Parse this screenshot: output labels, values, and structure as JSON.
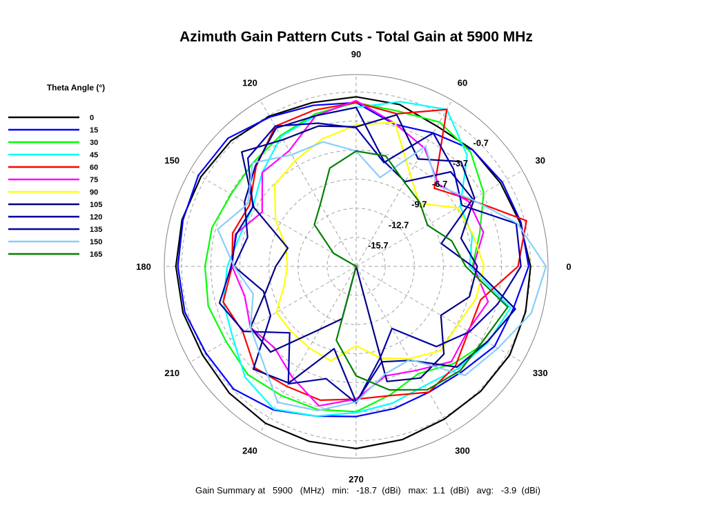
{
  "chart_data": {
    "type": "polar-line",
    "title": "Azimuth Gain Pattern Cuts - Total Gain at 5900 MHz",
    "legend_title": "Theta Angle (°)",
    "legend_position": "left",
    "angle_labels": [
      "0",
      "30",
      "60",
      "90",
      "120",
      "150",
      "180",
      "210",
      "240",
      "270",
      "300",
      "330"
    ],
    "angle_values": [
      0,
      30,
      60,
      90,
      120,
      150,
      180,
      210,
      240,
      270,
      300,
      330
    ],
    "radial_labels": [
      "-0.7",
      "-3.7",
      "-6.7",
      "-9.7",
      "-12.7",
      "-15.7"
    ],
    "rlim": [
      -18.7,
      1.1
    ],
    "grid": true,
    "summary": "Gain Summary at   5900   (MHz)   min:   -18.7  (dBi)   max:  1.1  (dBi)   avg:   -3.9  (dBi)",
    "series": [
      {
        "name": "0",
        "color": "#000000",
        "azimuth": [
          0,
          15,
          30,
          45,
          60,
          75,
          90,
          105,
          120,
          135,
          150,
          165,
          180,
          195,
          210,
          225,
          240,
          255,
          270,
          285,
          300,
          315,
          330,
          345
        ],
        "gain": [
          -0.7,
          -1.2,
          -1.5,
          -1.7,
          -2.0,
          -1.4,
          -1.2,
          -1.2,
          -0.8,
          -0.4,
          -0.2,
          -0.1,
          -0.1,
          -0.2,
          -0.4,
          -0.2,
          0.0,
          0.0,
          0.1,
          -0.2,
          -0.5,
          -0.5,
          -0.4,
          -0.6
        ]
      },
      {
        "name": "15",
        "color": "#0000ff",
        "azimuth": [
          0,
          15,
          30,
          45,
          60,
          75,
          90,
          105,
          120,
          135,
          150,
          165,
          180,
          195,
          210,
          225,
          240,
          255,
          270,
          285,
          300,
          315,
          330,
          345
        ],
        "gain": [
          -0.9,
          -1.1,
          -1.3,
          -1.7,
          -2.8,
          -3.5,
          -1.8,
          -1.5,
          -0.9,
          0.0,
          0.1,
          -0.2,
          -0.3,
          -0.4,
          -0.8,
          -0.8,
          -1.6,
          -2.7,
          -3.2,
          -3.5,
          -3.7,
          -3.3,
          -2.2,
          -1.9
        ]
      },
      {
        "name": "30",
        "color": "#00ff00",
        "azimuth": [
          0,
          15,
          30,
          45,
          60,
          75,
          90,
          105,
          120,
          135,
          150,
          165,
          180,
          195,
          210,
          225,
          240,
          255,
          270,
          285,
          300,
          315,
          330,
          345
        ],
        "gain": [
          -6.7,
          -5.5,
          -3.5,
          -2.0,
          -1.5,
          -2.1,
          -1.8,
          -2.4,
          -3.1,
          -3.6,
          -3.8,
          -3.3,
          -3.1,
          -2.9,
          -3.2,
          -2.9,
          -3.3,
          -3.4,
          -3.7,
          -5.0,
          -5.9,
          -4.5,
          -3.1,
          -1.7
        ]
      },
      {
        "name": "45",
        "color": "#00ffff",
        "azimuth": [
          0,
          15,
          30,
          45,
          60,
          75,
          90,
          105,
          120,
          135,
          150,
          165,
          180,
          195,
          210,
          225,
          240,
          255,
          270,
          285,
          300,
          315,
          330,
          345
        ],
        "gain": [
          -7.0,
          -6.3,
          -6.3,
          -2.5,
          0.0,
          -1.1,
          -2.3,
          -2.6,
          -3.2,
          -5.0,
          -6.4,
          -6.3,
          -5.4,
          -4.5,
          -4.0,
          -2.5,
          -1.7,
          -2.7,
          -3.6,
          -4.1,
          -4.5,
          -3.8,
          -3.0,
          -2.2
        ]
      },
      {
        "name": "60",
        "color": "#ff0000",
        "azimuth": [
          0,
          15,
          30,
          45,
          60,
          75,
          90,
          105,
          120,
          135,
          150,
          165,
          180,
          195,
          210,
          225,
          240,
          255,
          270,
          285,
          300,
          315,
          330,
          345
        ],
        "gain": [
          -2.0,
          -0.5,
          -5.0,
          -7.3,
          0.0,
          -2.4,
          -1.8,
          -2.0,
          -2.0,
          -4.1,
          -6.0,
          -5.5,
          -5.9,
          -4.5,
          -5.2,
          -3.9,
          -4.4,
          -4.4,
          -5.0,
          -4.9,
          -3.7,
          -4.2,
          -5.3,
          -5.4
        ]
      },
      {
        "name": "75",
        "color": "#ff00ff",
        "azimuth": [
          0,
          15,
          30,
          45,
          60,
          75,
          90,
          105,
          120,
          135,
          150,
          165,
          180,
          195,
          210,
          225,
          240,
          255,
          270,
          285,
          300,
          315,
          330,
          345
        ],
        "gain": [
          -6.6,
          -5.1,
          -5.3,
          -6.7,
          -4.6,
          -3.4,
          -1.6,
          -2.6,
          -4.9,
          -5.0,
          -7.5,
          -5.8,
          -5.9,
          -6.8,
          -6.1,
          -6.8,
          -5.5,
          -3.8,
          -5.0,
          -7.0,
          -6.3,
          -4.8,
          -5.4,
          -4.6
        ]
      },
      {
        "name": "90",
        "color": "#ffff00",
        "azimuth": [
          0,
          15,
          30,
          45,
          60,
          75,
          90,
          105,
          120,
          135,
          150,
          165,
          180,
          195,
          210,
          225,
          240,
          255,
          270,
          285,
          300,
          315,
          330,
          345
        ],
        "gain": [
          -5.5,
          -6.2,
          -6.6,
          -9.5,
          -7.6,
          -3.3,
          -4.1,
          -5.1,
          -6.1,
          -6.8,
          -9.1,
          -11.2,
          -11.6,
          -11.0,
          -9.2,
          -9.2,
          -9.0,
          -8.6,
          -10.5,
          -8.9,
          -7.7,
          -6.4,
          -6.6,
          -5.9
        ]
      },
      {
        "name": "105",
        "color": "#000080",
        "azimuth": [
          0,
          15,
          30,
          45,
          60,
          75,
          90,
          105,
          120,
          135,
          150,
          165,
          180,
          195,
          210,
          225,
          240,
          255,
          270,
          285,
          300,
          315,
          330,
          345
        ],
        "gain": [
          -6.2,
          -7.5,
          -4.6,
          -3.4,
          -5.9,
          -2.5,
          -4.3,
          -3.7,
          -3.6,
          -2.0,
          -6.5,
          -11.4,
          -10.4,
          -9.1,
          -6.1,
          -6.2,
          -11.2,
          -13.1,
          -18.7,
          -6.4,
          -5.4,
          -5.9,
          -8.6,
          -6.6
        ]
      },
      {
        "name": "120",
        "color": "#000099",
        "azimuth": [
          0,
          15,
          30,
          45,
          60,
          75,
          90,
          105,
          120,
          135,
          150,
          165,
          180,
          195,
          210,
          225,
          240,
          255,
          270,
          285,
          300,
          315,
          330,
          345
        ],
        "gain": [
          -6.7,
          -9.6,
          -4.8,
          -4.9,
          -8.6,
          -7.5,
          -2.3,
          -2.6,
          -2.2,
          -4.0,
          -5.4,
          -7.1,
          -6.1,
          -8.8,
          -8.5,
          -3.7,
          -4.8,
          -9.9,
          -4.7,
          -8.5,
          -7.5,
          -4.0,
          -3.1,
          -1.7
        ]
      },
      {
        "name": "135",
        "color": "#0000aa",
        "azimuth": [
          0,
          15,
          30,
          45,
          60,
          75,
          90,
          105,
          120,
          135,
          150,
          165,
          180,
          195,
          210,
          225,
          240,
          255,
          270,
          285,
          300,
          315,
          330,
          345
        ],
        "gain": [
          -1.7,
          -1.6,
          -6.1,
          -4.5,
          -2.8,
          -7.6,
          -4.4,
          -3.4,
          -2.0,
          -2.9,
          -6.4,
          -5.9,
          -5.8,
          -4.1,
          -5.3,
          -9.0,
          -4.7,
          -6.7,
          -4.6,
          -9.0,
          -11.3,
          -7.0,
          -5.2,
          -3.6
        ]
      },
      {
        "name": "150",
        "color": "#87cefa",
        "azimuth": [
          0,
          15,
          30,
          45,
          60,
          75,
          90,
          105,
          120,
          135,
          150,
          165,
          180,
          195,
          210,
          225,
          240,
          255,
          270,
          285,
          300,
          315,
          330,
          345
        ],
        "gain": [
          0.9,
          -1.5,
          -4.9,
          -6.9,
          -4.4,
          -9.2,
          -6.8,
          -5.4,
          -5.4,
          -3.6,
          -5.8,
          -3.9,
          -6.1,
          -7.7,
          -6.1,
          -5.0,
          -2.5,
          -3.3,
          -4.7,
          -7.2,
          -7.6,
          -2.8,
          -1.8,
          0.0
        ]
      },
      {
        "name": "165",
        "color": "#008000",
        "azimuth": [
          0,
          15,
          30,
          45,
          60,
          75,
          90,
          105,
          120,
          135,
          150,
          165,
          180,
          195,
          210,
          225,
          240,
          255,
          270,
          285,
          300,
          315,
          330,
          345
        ],
        "gain": [
          -7.4,
          -8.5,
          -10.2,
          -9.4,
          -8.7,
          -6.9,
          -6.8,
          -8.2,
          -11.3,
          -12.6,
          -16.0,
          -18.7,
          -18.7,
          -18.7,
          -18.7,
          -18.7,
          -18.7,
          -10.8,
          -7.4,
          -5.5,
          -4.0,
          -3.5,
          -3.5,
          -2.5
        ]
      }
    ]
  }
}
